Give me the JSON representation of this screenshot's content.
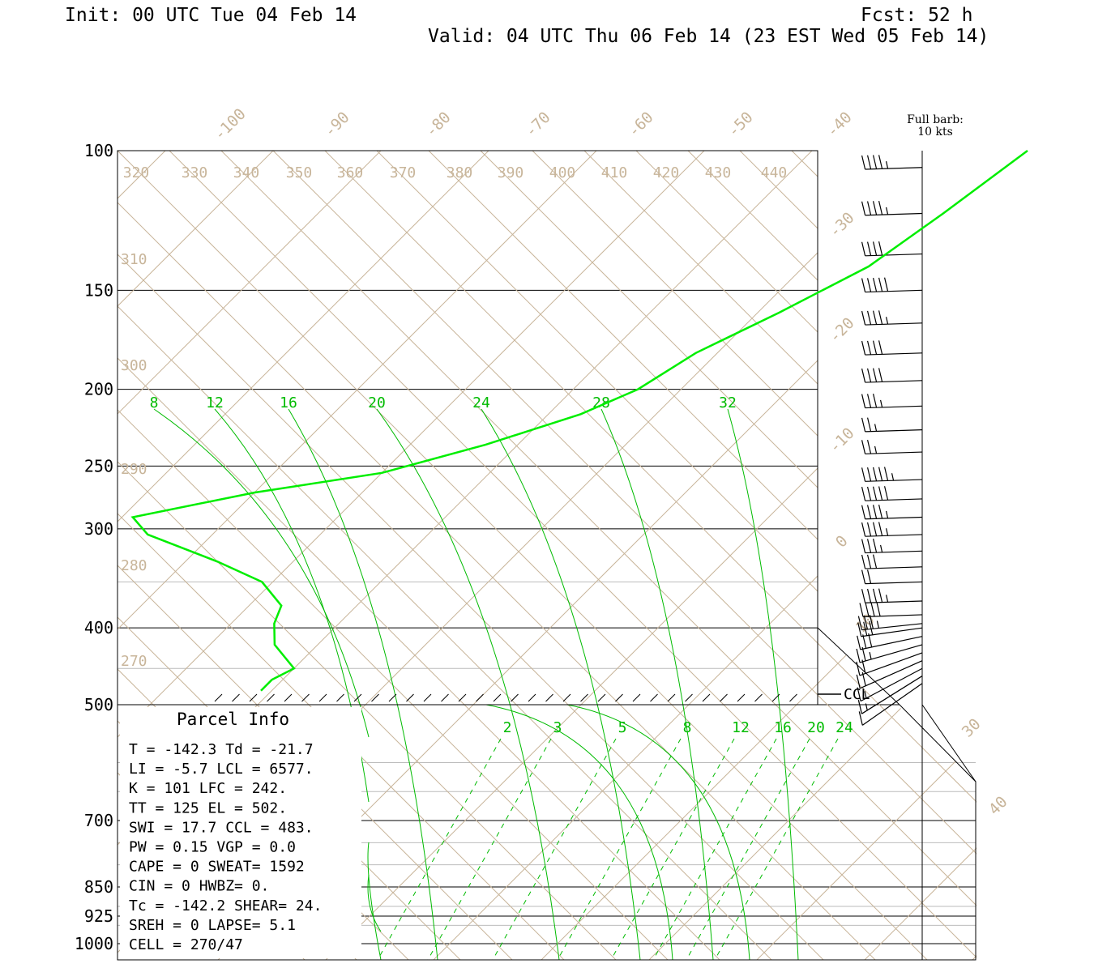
{
  "header": {
    "init": "Init: 00 UTC Tue 04 Feb 14",
    "fcst": "Fcst:   52 h",
    "valid": "Valid: 04 UTC Thu 06 Feb 14 (23 EST Wed 05 Feb 14)"
  },
  "legend": {
    "barb_line1": "Full barb:",
    "barb_line2": "10 kts"
  },
  "colors": {
    "isotherm": "#c8b59a",
    "adiabat": "#00bb00",
    "profile": "#00ee00",
    "frame": "#000000"
  },
  "chart_data": {
    "type": "line",
    "title": "",
    "ylabel": "",
    "pressure_labels": [
      "100",
      "150",
      "200",
      "250",
      "300",
      "400",
      "500",
      "700",
      "850",
      "925",
      "1000"
    ],
    "pressure_levels": [
      100,
      150,
      200,
      250,
      300,
      400,
      500,
      700,
      850,
      925,
      1000
    ],
    "isotherm_labels": [
      "-100",
      "-90",
      "-80",
      "-70",
      "-60",
      "-50",
      "-40",
      "-30",
      "-20",
      "-10",
      "0",
      "10",
      "30",
      "40"
    ],
    "theta_top_labels": [
      "320",
      "330",
      "340",
      "350",
      "360",
      "370",
      "380",
      "390",
      "400",
      "410",
      "420",
      "430",
      "440"
    ],
    "theta_left_labels": [
      "310",
      "300",
      "290",
      "280",
      "270"
    ],
    "moist_top_labels": [
      "8",
      "12",
      "16",
      "20",
      "24",
      "28",
      "32"
    ],
    "mixing_ratio_labels": [
      "2",
      "3",
      "5",
      "8",
      "12",
      "16",
      "20",
      "24"
    ],
    "ccl_label": "CCL",
    "series": [
      {
        "name": "",
        "points": [
          {
            "p": 100,
            "t": -30
          },
          {
            "p": 120,
            "t": -32
          },
          {
            "p": 140,
            "t": -34
          },
          {
            "p": 160,
            "t": -38
          },
          {
            "p": 180,
            "t": -42
          },
          {
            "p": 200,
            "t": -44
          },
          {
            "p": 215,
            "t": -47
          },
          {
            "p": 235,
            "t": -53
          },
          {
            "p": 255,
            "t": -60
          },
          {
            "p": 270,
            "t": -70
          },
          {
            "p": 290,
            "t": -79
          },
          {
            "p": 305,
            "t": -76
          },
          {
            "p": 330,
            "t": -67
          },
          {
            "p": 350,
            "t": -61
          },
          {
            "p": 375,
            "t": -57
          },
          {
            "p": 395,
            "t": -56
          },
          {
            "p": 420,
            "t": -54
          },
          {
            "p": 450,
            "t": -50
          },
          {
            "p": 465,
            "t": -51
          },
          {
            "p": 480,
            "t": -51
          }
        ]
      }
    ],
    "winds_kts": [
      {
        "p": 105,
        "spd": 45
      },
      {
        "p": 120,
        "spd": 45
      },
      {
        "p": 135,
        "spd": 40
      },
      {
        "p": 150,
        "spd": 50
      },
      {
        "p": 165,
        "spd": 45
      },
      {
        "p": 180,
        "spd": 40
      },
      {
        "p": 195,
        "spd": 40
      },
      {
        "p": 210,
        "spd": 35
      },
      {
        "p": 225,
        "spd": 25
      },
      {
        "p": 240,
        "spd": 25
      },
      {
        "p": 260,
        "spd": 55
      },
      {
        "p": 275,
        "spd": 50
      },
      {
        "p": 290,
        "spd": 45
      },
      {
        "p": 305,
        "spd": 45
      },
      {
        "p": 320,
        "spd": 35
      },
      {
        "p": 335,
        "spd": 30
      },
      {
        "p": 350,
        "spd": 20
      },
      {
        "p": 370,
        "spd": 45
      },
      {
        "p": 385,
        "spd": 40
      },
      {
        "p": 395,
        "spd": 35
      },
      {
        "p": 400,
        "spd": 30
      },
      {
        "p": 410,
        "spd": 30
      },
      {
        "p": 420,
        "spd": 25
      },
      {
        "p": 430,
        "spd": 20
      },
      {
        "p": 440,
        "spd": 20
      },
      {
        "p": 450,
        "spd": 15
      },
      {
        "p": 460,
        "spd": 15
      },
      {
        "p": 470,
        "spd": 10
      }
    ]
  },
  "parcel_info": {
    "title": "Parcel Info",
    "rows": [
      "T  =  -142.3 Td = -21.7",
      "LI =    -5.7 LCL = 6577.",
      "K  =     101 LFC =  242.",
      "TT =     125 EL  =  502.",
      "SWI =   17.7 CCL =  483.",
      "PW =    0.15 VGP =   0.0",
      "CAPE =     0 SWEAT= 1592",
      "CIN =      0 HWBZ=    0.",
      "Tc =  -142.2 SHEAR=  24.",
      "SREH =     0 LAPSE=  5.1",
      "CELL = 270/47"
    ]
  }
}
